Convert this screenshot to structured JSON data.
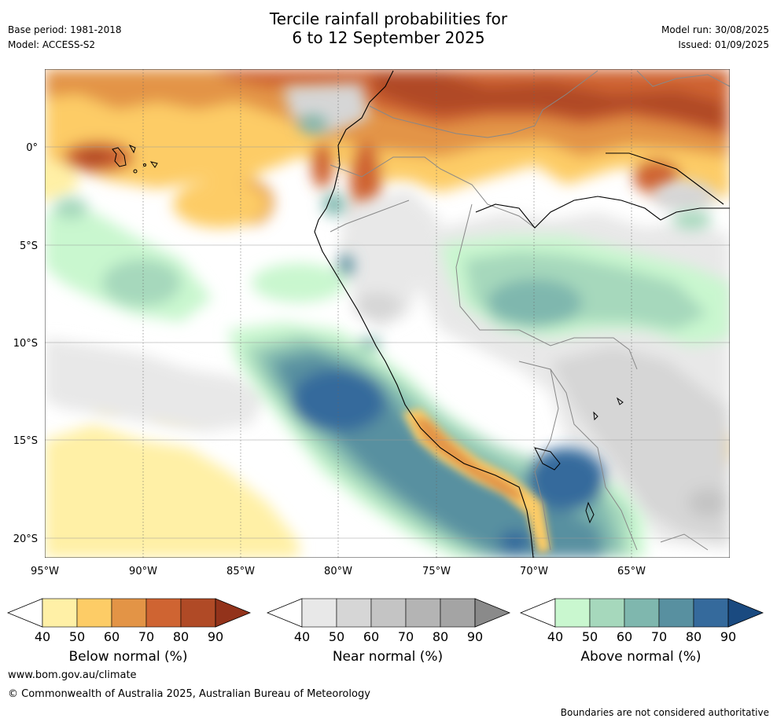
{
  "header": {
    "title_line1": "Tercile rainfall probabilities for",
    "title_line2": "6 to 12 September 2025",
    "base_period": "Base period: 1981-2018",
    "model": "Model: ACCESS-S2",
    "model_run": "Model run: 30/08/2025",
    "issued": "Issued: 01/09/2025"
  },
  "map": {
    "lon_labels": [
      "95°W",
      "90°W",
      "85°W",
      "80°W",
      "75°W",
      "70°W",
      "65°W"
    ],
    "lat_labels": [
      "0°",
      "5°S",
      "10°S",
      "15°S",
      "20°S"
    ],
    "extent": {
      "lon_west": -95,
      "lon_east": -60,
      "lat_north": 4,
      "lat_south": -21
    },
    "gridlines": true
  },
  "colorbars": [
    {
      "title": "Below normal (%)",
      "ticks": [
        "40",
        "50",
        "60",
        "70",
        "80",
        "90"
      ],
      "colors": [
        "#fff0a6",
        "#fdcc66",
        "#e39446",
        "#cf6432",
        "#b04a26",
        "#93331b"
      ]
    },
    {
      "title": "Near normal (%)",
      "ticks": [
        "40",
        "50",
        "60",
        "70",
        "80",
        "90"
      ],
      "colors": [
        "#e8e8e8",
        "#d6d6d6",
        "#c4c4c4",
        "#b4b4b4",
        "#a4a4a4",
        "#8a8a8a"
      ]
    },
    {
      "title": "Above normal (%)",
      "ticks": [
        "40",
        "50",
        "60",
        "70",
        "80",
        "90"
      ],
      "colors": [
        "#c9f7cf",
        "#a6d8bc",
        "#7fb7ae",
        "#5890a0",
        "#356a9c",
        "#1a4a80"
      ]
    }
  ],
  "footer": {
    "url": "www.bom.gov.au/climate",
    "copyright": "© Commonwealth of Australia 2025, Australian Bureau of Meteorology",
    "note": "Boundaries are not considered authoritative"
  }
}
